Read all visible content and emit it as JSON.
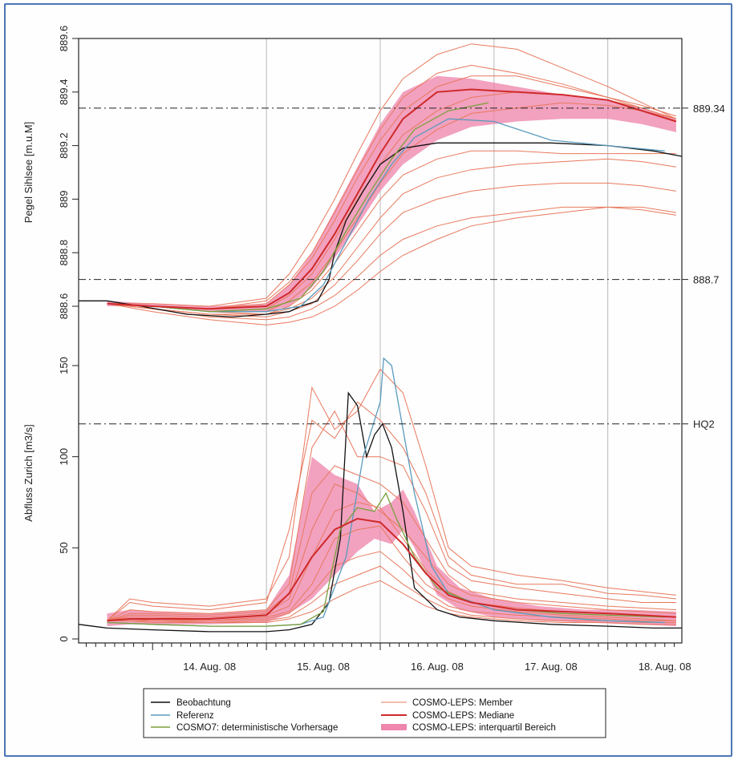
{
  "chart_data": [
    {
      "type": "line",
      "ylabel": "Pegel Sihlsee [m.u.M]",
      "ylim": [
        888.52,
        889.6
      ],
      "yticks": [
        888.6,
        888.8,
        889.0,
        889.2,
        889.4,
        889.6
      ],
      "xlim_days": [
        13.35,
        18.65
      ],
      "reference_lines": [
        {
          "value": 889.34,
          "label": "889.34"
        },
        {
          "value": 888.7,
          "label": "888.7"
        }
      ],
      "series": [
        {
          "name": "Beobachtung",
          "color": "#111111",
          "x": [
            13.35,
            13.6,
            13.9,
            14.3,
            14.7,
            15.0,
            15.2,
            15.3,
            15.45,
            15.55,
            15.6,
            15.7,
            15.85,
            16.0,
            16.2,
            16.5,
            17.0,
            17.5,
            18.0,
            18.4,
            18.65
          ],
          "y": [
            888.62,
            888.62,
            888.6,
            888.57,
            888.56,
            888.57,
            888.58,
            888.6,
            888.62,
            888.7,
            888.8,
            888.92,
            889.03,
            889.13,
            889.19,
            889.21,
            889.21,
            889.21,
            889.2,
            889.18,
            889.16
          ]
        },
        {
          "name": "Referenz",
          "color": "#5a9bbd",
          "x": [
            13.6,
            14.0,
            14.5,
            15.0,
            15.3,
            15.5,
            15.7,
            15.9,
            16.1,
            16.3,
            16.6,
            17.0,
            17.5,
            18.0,
            18.5
          ],
          "y": [
            888.61,
            888.6,
            888.58,
            888.58,
            888.6,
            888.68,
            888.84,
            889.0,
            889.13,
            889.23,
            889.3,
            889.29,
            889.22,
            889.2,
            889.18
          ]
        },
        {
          "name": "COSMO7: deterministische Vorhersage",
          "color": "#7aa03c",
          "x": [
            13.6,
            14.0,
            14.5,
            15.0,
            15.3,
            15.5,
            15.7,
            15.9,
            16.1,
            16.3,
            16.6,
            16.95
          ],
          "y": [
            888.61,
            888.6,
            888.58,
            888.59,
            888.63,
            888.73,
            888.88,
            889.02,
            889.15,
            889.26,
            889.33,
            889.36
          ]
        },
        {
          "name": "COSMO-LEPS: Mediane",
          "color": "#cf2a2a",
          "x": [
            13.6,
            14.0,
            14.5,
            15.0,
            15.2,
            15.4,
            15.6,
            15.8,
            16.0,
            16.2,
            16.5,
            16.8,
            17.2,
            17.6,
            18.0,
            18.3,
            18.6
          ],
          "y": [
            888.61,
            888.6,
            888.59,
            888.6,
            888.65,
            888.74,
            888.87,
            889.02,
            889.17,
            889.3,
            889.4,
            889.41,
            889.4,
            889.39,
            889.37,
            889.33,
            889.29
          ]
        }
      ],
      "members": {
        "name": "COSMO-LEPS: Member",
        "color": "#e8795e",
        "x": [
          13.6,
          14.0,
          14.5,
          15.0,
          15.2,
          15.4,
          15.6,
          15.8,
          16.0,
          16.2,
          16.5,
          16.8,
          17.2,
          17.6,
          18.0,
          18.3,
          18.6
        ],
        "runs": [
          [
            888.61,
            888.61,
            888.6,
            888.63,
            888.72,
            888.85,
            889.0,
            889.17,
            889.33,
            889.45,
            889.54,
            889.58,
            889.56,
            889.49,
            889.42,
            889.36,
            889.3
          ],
          [
            888.61,
            888.6,
            888.59,
            888.62,
            888.69,
            888.8,
            888.95,
            889.11,
            889.26,
            889.38,
            889.47,
            889.5,
            889.47,
            889.43,
            889.38,
            889.34,
            889.3
          ],
          [
            888.61,
            888.6,
            888.59,
            888.61,
            888.68,
            888.78,
            888.92,
            889.08,
            889.22,
            889.33,
            889.42,
            889.46,
            889.46,
            889.42,
            889.38,
            889.35,
            889.31
          ],
          [
            888.61,
            888.6,
            888.58,
            888.59,
            888.64,
            888.72,
            888.85,
            889.0,
            889.13,
            889.24,
            889.33,
            889.38,
            889.4,
            889.39,
            889.37,
            889.34,
            889.3
          ],
          [
            888.61,
            888.6,
            888.58,
            888.58,
            888.62,
            888.69,
            888.8,
            888.93,
            889.06,
            889.17,
            889.26,
            889.32,
            889.34,
            889.36,
            889.35,
            889.33,
            889.3
          ],
          [
            888.61,
            888.6,
            888.58,
            888.57,
            888.6,
            888.66,
            888.76,
            888.88,
            889.0,
            889.09,
            889.15,
            889.18,
            889.18,
            889.17,
            889.17,
            889.17,
            889.17
          ],
          [
            888.61,
            888.59,
            888.57,
            888.57,
            888.59,
            888.63,
            888.71,
            888.82,
            888.93,
            889.02,
            889.08,
            889.11,
            889.13,
            889.14,
            889.15,
            889.14,
            889.12
          ],
          [
            888.61,
            888.59,
            888.57,
            888.56,
            888.58,
            888.61,
            888.68,
            888.77,
            888.87,
            888.95,
            889.0,
            889.03,
            889.05,
            889.06,
            889.06,
            889.05,
            889.03
          ],
          [
            888.61,
            888.59,
            888.56,
            888.55,
            888.56,
            888.59,
            888.64,
            888.71,
            888.79,
            888.85,
            888.9,
            888.93,
            888.95,
            888.97,
            888.97,
            888.96,
            888.94
          ],
          [
            888.61,
            888.58,
            888.55,
            888.53,
            888.54,
            888.56,
            888.6,
            888.66,
            888.73,
            888.79,
            888.85,
            888.9,
            888.93,
            888.95,
            888.97,
            888.97,
            888.95
          ]
        ]
      },
      "band": {
        "name": "COSMO-LEPS: interquartil Bereich",
        "color": "#ee86ad",
        "x": [
          13.6,
          14.0,
          14.5,
          15.0,
          15.2,
          15.4,
          15.6,
          15.8,
          16.0,
          16.2,
          16.5,
          16.8,
          17.2,
          17.6,
          18.0,
          18.3,
          18.6
        ],
        "lower": [
          888.6,
          888.6,
          888.58,
          888.58,
          888.6,
          888.67,
          888.78,
          888.9,
          889.03,
          889.13,
          889.22,
          889.27,
          889.29,
          889.3,
          889.3,
          889.28,
          889.25
        ],
        "upper": [
          888.62,
          888.61,
          888.6,
          888.61,
          888.68,
          888.8,
          888.96,
          889.12,
          889.28,
          889.4,
          889.46,
          889.45,
          889.42,
          889.39,
          889.37,
          889.34,
          889.3
        ]
      }
    },
    {
      "type": "line",
      "ylabel": "Abfluss Zurich [m3/s]",
      "ylim": [
        0,
        160
      ],
      "yticks": [
        0,
        50,
        100,
        150
      ],
      "xlim_days": [
        13.35,
        18.65
      ],
      "reference_lines": [
        {
          "value": 118,
          "label": "HQ2"
        }
      ],
      "series": [
        {
          "name": "Beobachtung",
          "color": "#111111",
          "x": [
            13.35,
            13.6,
            14.0,
            14.5,
            15.0,
            15.2,
            15.4,
            15.55,
            15.65,
            15.72,
            15.8,
            15.88,
            15.95,
            16.02,
            16.1,
            16.2,
            16.3,
            16.5,
            16.7,
            17.0,
            17.5,
            18.0,
            18.4,
            18.65
          ],
          "y": [
            8,
            6,
            5,
            4,
            4,
            5,
            8,
            20,
            55,
            135,
            128,
            100,
            112,
            118,
            105,
            70,
            28,
            16,
            12,
            10,
            8,
            7,
            6,
            6
          ]
        },
        {
          "name": "Referenz",
          "color": "#5a9bbd",
          "x": [
            13.6,
            14.0,
            14.5,
            15.0,
            15.3,
            15.5,
            15.7,
            15.85,
            16.0,
            16.03,
            16.1,
            16.2,
            16.3,
            16.45,
            16.6,
            17.0,
            17.5,
            18.0,
            18.5
          ],
          "y": [
            9,
            8,
            7,
            7,
            8,
            12,
            45,
            100,
            130,
            154,
            150,
            115,
            80,
            40,
            25,
            16,
            12,
            10,
            9
          ]
        },
        {
          "name": "COSMO7: deterministische Vorhersage",
          "color": "#7aa03c",
          "x": [
            13.6,
            14.0,
            14.5,
            15.0,
            15.3,
            15.5,
            15.65,
            15.8,
            15.95,
            16.05,
            16.15,
            16.3,
            16.5,
            16.8,
            17.2,
            17.6,
            18.0,
            18.5
          ],
          "y": [
            9,
            8,
            7,
            7,
            8,
            15,
            60,
            72,
            70,
            80,
            65,
            45,
            28,
            20,
            16,
            14,
            13,
            12
          ]
        },
        {
          "name": "COSMO-LEPS: Mediane",
          "color": "#cf2a2a",
          "x": [
            13.6,
            13.8,
            14.0,
            14.5,
            15.0,
            15.2,
            15.4,
            15.6,
            15.8,
            16.0,
            16.2,
            16.4,
            16.6,
            16.8,
            17.2,
            17.6,
            18.0,
            18.3,
            18.6
          ],
          "y": [
            10,
            11,
            11,
            11,
            13,
            25,
            45,
            60,
            66,
            64,
            52,
            36,
            24,
            20,
            16,
            15,
            14,
            13,
            12
          ]
        }
      ],
      "members": {
        "name": "COSMO-LEPS: Member",
        "color": "#e8795e",
        "x": [
          13.6,
          13.8,
          14.0,
          14.5,
          15.0,
          15.2,
          15.4,
          15.6,
          15.8,
          16.0,
          16.2,
          16.4,
          16.6,
          16.8,
          17.2,
          17.6,
          18.0,
          18.3,
          18.6
        ],
        "runs": [
          [
            10,
            22,
            20,
            18,
            22,
            45,
            138,
            115,
            125,
            148,
            135,
            95,
            50,
            40,
            35,
            32,
            28,
            26,
            24
          ],
          [
            10,
            20,
            18,
            16,
            20,
            60,
            120,
            110,
            130,
            120,
            105,
            80,
            45,
            35,
            30,
            30,
            25,
            24,
            22
          ],
          [
            10,
            16,
            15,
            14,
            16,
            30,
            105,
            125,
            100,
            100,
            95,
            70,
            40,
            32,
            28,
            25,
            22,
            20,
            20
          ],
          [
            10,
            14,
            14,
            13,
            15,
            25,
            80,
            95,
            90,
            85,
            75,
            55,
            35,
            26,
            22,
            20,
            18,
            17,
            16
          ],
          [
            10,
            13,
            13,
            12,
            14,
            22,
            60,
            85,
            80,
            70,
            60,
            45,
            30,
            24,
            20,
            18,
            16,
            15,
            14
          ],
          [
            10,
            12,
            12,
            11,
            13,
            18,
            45,
            70,
            75,
            72,
            55,
            38,
            26,
            20,
            17,
            15,
            14,
            13,
            12
          ],
          [
            10,
            11,
            11,
            10,
            12,
            15,
            30,
            55,
            60,
            62,
            45,
            30,
            22,
            18,
            15,
            13,
            12,
            11,
            10
          ],
          [
            10,
            11,
            10,
            10,
            11,
            14,
            25,
            40,
            45,
            48,
            38,
            26,
            18,
            15,
            13,
            12,
            11,
            10,
            10
          ],
          [
            10,
            10,
            10,
            9,
            10,
            12,
            20,
            30,
            35,
            40,
            30,
            22,
            16,
            13,
            11,
            10,
            10,
            9,
            9
          ],
          [
            10,
            10,
            9,
            9,
            9,
            11,
            15,
            22,
            28,
            32,
            25,
            18,
            14,
            12,
            10,
            9,
            9,
            8,
            8
          ]
        ]
      },
      "band": {
        "name": "COSMO-LEPS: interquartil Bereich",
        "color": "#ee86ad",
        "x": [
          13.6,
          13.8,
          14.0,
          14.5,
          15.0,
          15.2,
          15.4,
          15.6,
          15.8,
          15.95,
          16.1,
          16.2,
          16.3,
          16.5,
          16.7,
          17.0,
          17.4,
          17.8,
          18.2,
          18.6
        ],
        "lower": [
          7,
          8,
          8,
          8,
          9,
          14,
          22,
          35,
          48,
          55,
          52,
          60,
          50,
          24,
          16,
          12,
          10,
          9,
          8,
          7
        ],
        "upper": [
          14,
          16,
          15,
          14,
          16,
          35,
          100,
          90,
          85,
          70,
          75,
          82,
          70,
          40,
          28,
          22,
          18,
          16,
          16,
          15
        ]
      }
    }
  ],
  "x_axis": {
    "tick_labels": [
      "14. Aug. 08",
      "15. Aug. 08",
      "16. Aug. 08",
      "17. Aug. 08",
      "18. Aug. 08"
    ]
  },
  "legend": {
    "col1": [
      {
        "label": "Beobachtung",
        "color": "#111111",
        "style": "line"
      },
      {
        "label": "Referenz",
        "color": "#5a9bbd",
        "style": "line"
      },
      {
        "label": "COSMO7: deterministische Vorhersage",
        "color": "#7aa03c",
        "style": "line"
      }
    ],
    "col2": [
      {
        "label": "COSMO-LEPS: Member",
        "color": "#e8795e",
        "style": "thin"
      },
      {
        "label": "COSMO-LEPS: Mediane",
        "color": "#cf2a2a",
        "style": "thick"
      },
      {
        "label": "COSMO-LEPS: interquartil Bereich",
        "color": "#ee86ad",
        "style": "band"
      }
    ]
  }
}
